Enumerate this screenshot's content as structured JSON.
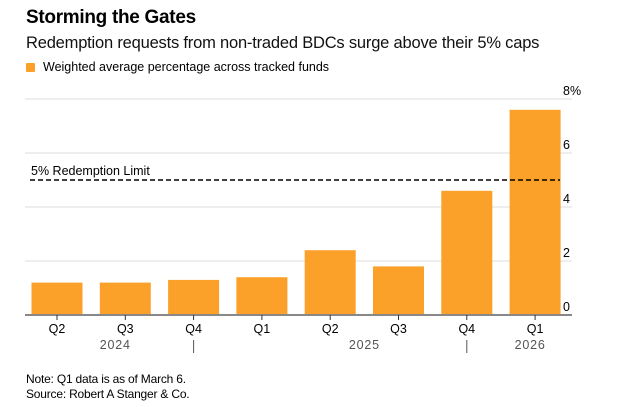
{
  "colors": {
    "bar": "#FBA12A",
    "grid": "#dddddd",
    "axis": "#888888",
    "reference": "#000000"
  },
  "chart_data": {
    "type": "bar",
    "title": "Storming the Gates",
    "subtitle": "Redemption requests from non-traded BDCs surge above their 5% caps",
    "legend": [
      {
        "name": "Weighted average percentage across tracked funds",
        "color": "#FBA12A"
      }
    ],
    "legend_placement": "top-left",
    "categories": [
      "Q2",
      "Q3",
      "Q4",
      "Q1",
      "Q2",
      "Q3",
      "Q4",
      "Q1"
    ],
    "year_groups": [
      {
        "label": "2024",
        "start": 0,
        "end": 2
      },
      {
        "label": "2025",
        "start": 3,
        "end": 6
      },
      {
        "label": "2026",
        "start": 7,
        "end": 7
      }
    ],
    "series": [
      {
        "name": "Weighted average percentage across tracked funds",
        "values": [
          1.2,
          1.2,
          1.3,
          1.4,
          2.4,
          1.8,
          4.6,
          7.6
        ]
      }
    ],
    "y_ticks": [
      0,
      2,
      4,
      6,
      8
    ],
    "y_tick_labels": [
      "0",
      "2",
      "4",
      "6",
      "8%"
    ],
    "ylim": [
      0,
      8
    ],
    "y_axis_side": "right",
    "grid": true,
    "reference_line": {
      "value": 5,
      "label": "5% Redemption Limit",
      "style": "dashed"
    },
    "xlabel": "",
    "ylabel": ""
  },
  "footer": {
    "note": "Note: Q1 data is as of March 6.",
    "source": "Source: Robert A Stanger & Co."
  }
}
